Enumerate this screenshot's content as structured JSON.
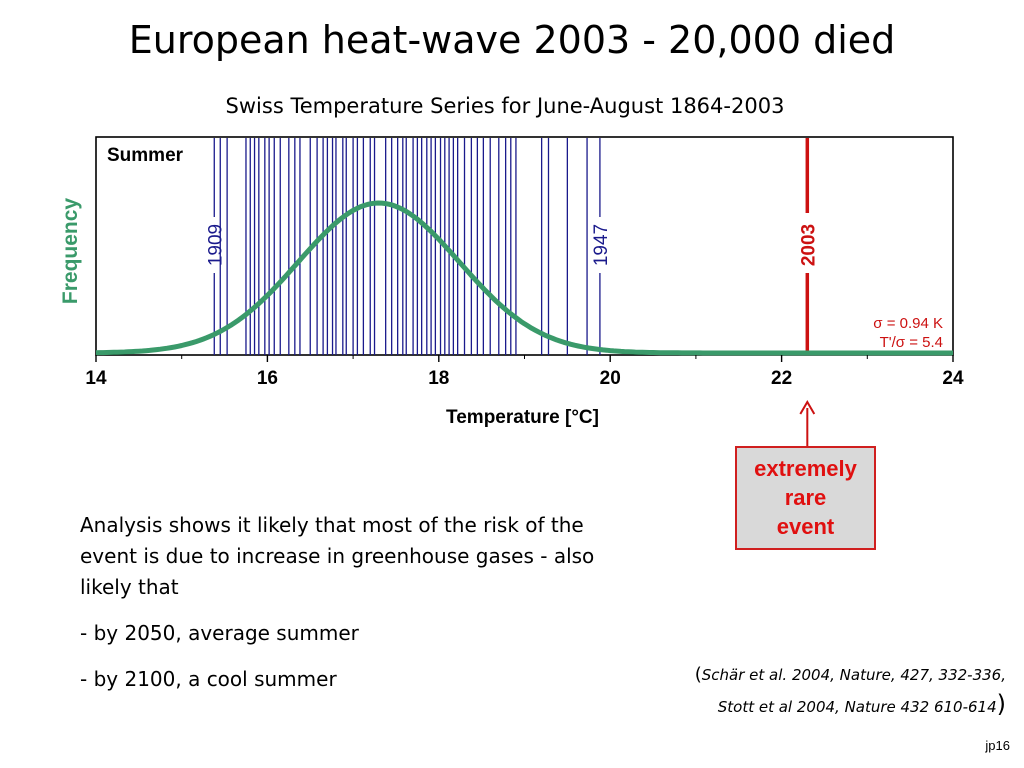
{
  "slide": {
    "title": "European heat-wave 2003 - 20,000 died",
    "subtitle": "Swiss Temperature Series for June-August 1864-2003",
    "callout": {
      "line1": "extremely",
      "line2": "rare",
      "line3": "event"
    },
    "analysis": {
      "paragraph": "Analysis shows it likely that most of the risk of the event is due to  increase in greenhouse gases - also likely that",
      "bullet1": "- by 2050, average summer",
      "bullet2": "- by 2100, a cool summer"
    },
    "citation": {
      "open_paren": "(",
      "line1": "Schär et al. 2004, Nature, 427, 332-336,",
      "line2": "Stott et al 2004, Nature 432 610-614",
      "close_paren": ")"
    },
    "page_tag": "jp16"
  },
  "chart_data": {
    "type": "line",
    "panel_label": "Summer",
    "xlabel": "Temperature [°C]",
    "ylabel": "Frequency",
    "xlim": [
      14,
      24
    ],
    "x_ticks": [
      14,
      16,
      18,
      20,
      22,
      24
    ],
    "grid": false,
    "distribution": {
      "mean": 17.3,
      "sigma": 0.94,
      "unit": "°C"
    },
    "year_lines": [
      15.38,
      15.45,
      15.53,
      15.75,
      15.8,
      15.85,
      15.9,
      15.97,
      16.02,
      16.08,
      16.15,
      16.25,
      16.32,
      16.38,
      16.5,
      16.58,
      16.65,
      16.7,
      16.76,
      16.8,
      16.88,
      16.92,
      17.0,
      17.05,
      17.12,
      17.2,
      17.25,
      17.38,
      17.45,
      17.52,
      17.58,
      17.62,
      17.7,
      17.75,
      17.8,
      17.86,
      17.91,
      17.96,
      18.02,
      18.07,
      18.12,
      18.17,
      18.22,
      18.3,
      18.38,
      18.45,
      18.52,
      18.6,
      18.7,
      18.78,
      18.84,
      18.9,
      19.2,
      19.28,
      19.5,
      19.73,
      19.88
    ],
    "labeled_years": [
      {
        "year": "1909",
        "x": 15.38,
        "color": "#1a1a8c"
      },
      {
        "year": "1947",
        "x": 19.88,
        "color": "#1a1a8c"
      },
      {
        "year": "2003",
        "x": 22.3,
        "color": "#cc1111"
      }
    ],
    "annotations": {
      "sigma_text": "σ = 0.94 K",
      "ratio_text": "T'/σ = 5.4"
    },
    "colors": {
      "curve": "#3a9a6a",
      "year_lines": "#1a1a8c",
      "event_line": "#cc1111",
      "ylabel": "#3a9a6a"
    }
  }
}
